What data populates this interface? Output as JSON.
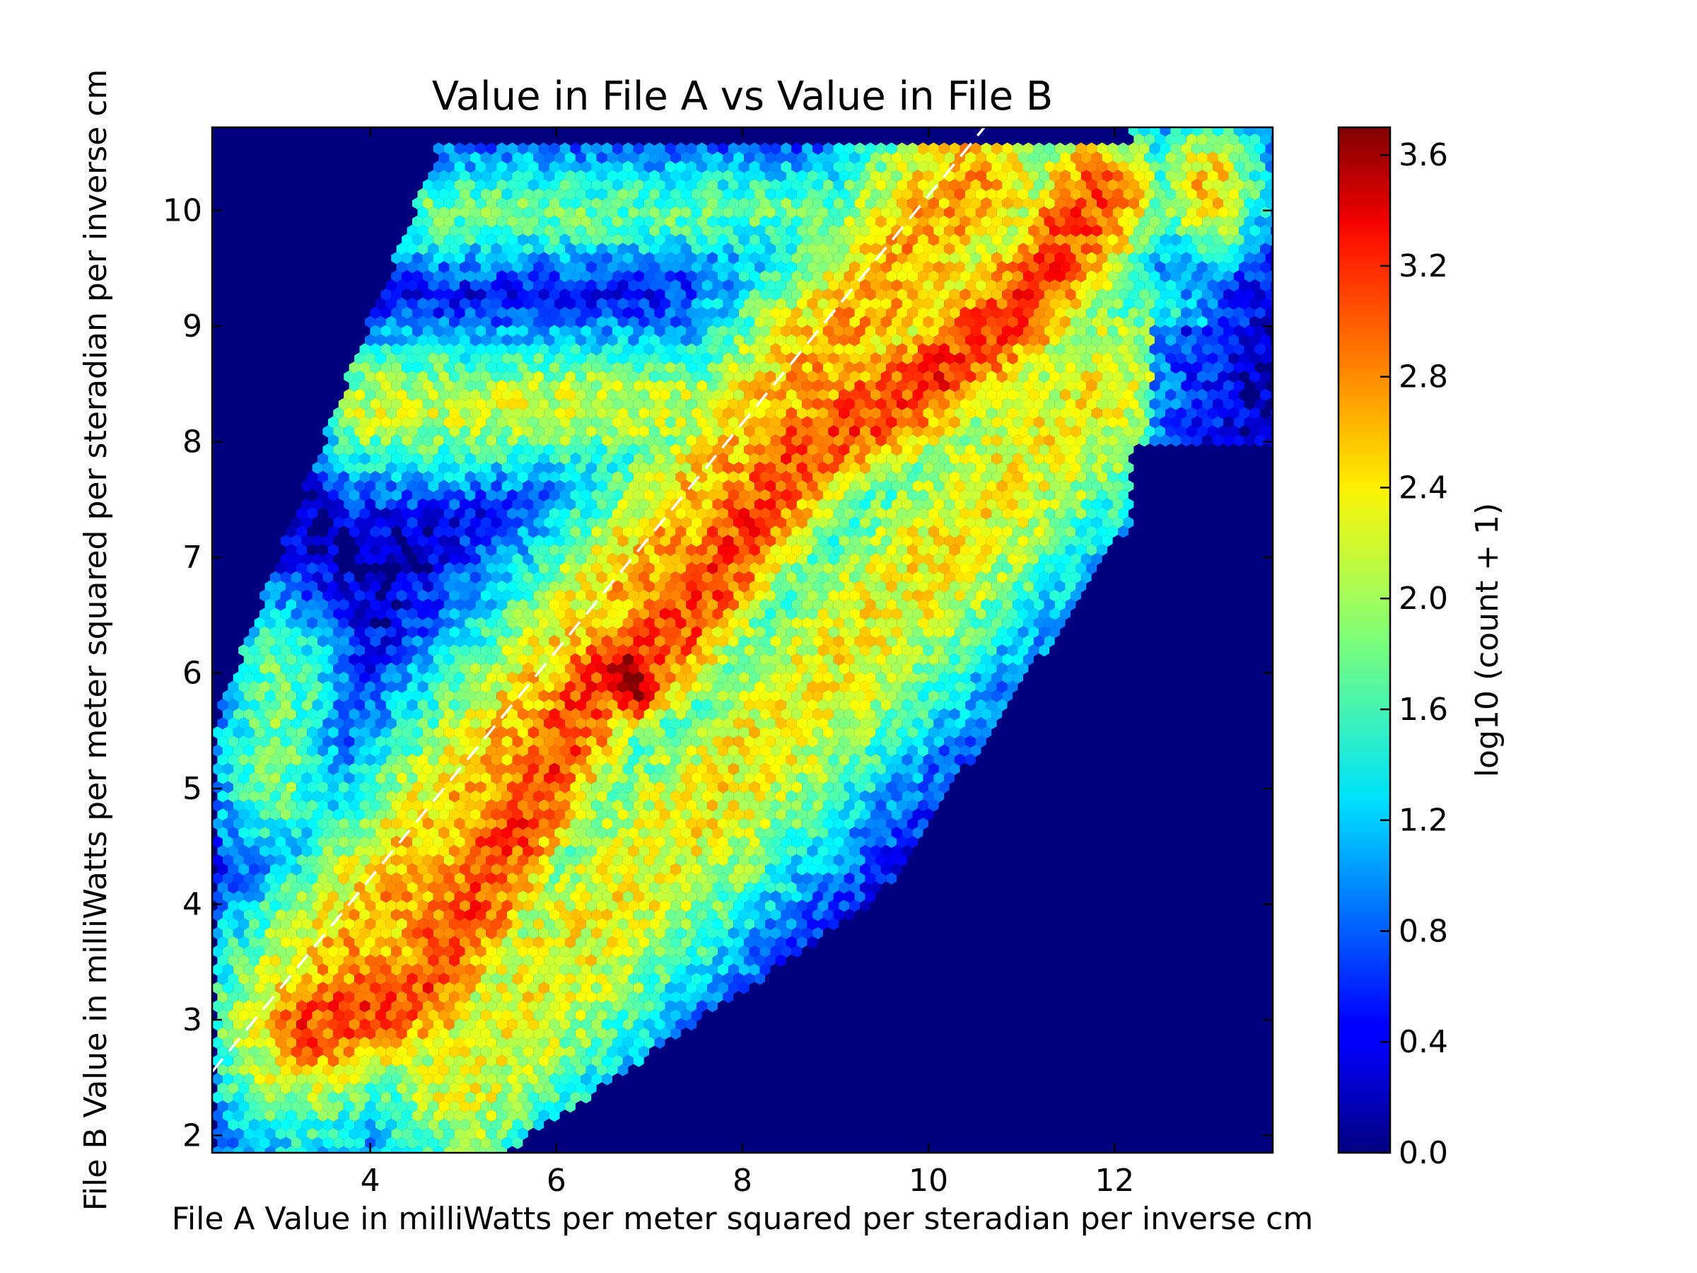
{
  "chart_data": {
    "type": "heatmap",
    "title": "Value in File A vs Value in File B",
    "xlabel": "File A Value in milliWatts per meter squared per steradian per inverse cm",
    "ylabel": "File B Value in milliWatts per meter squared per steradian per inverse cm",
    "xlim": [
      2.3,
      13.7
    ],
    "ylim": [
      1.85,
      10.72
    ],
    "x_ticks": [
      4,
      6,
      8,
      10,
      12
    ],
    "x_tick_labels": [
      "4",
      "6",
      "8",
      "10",
      "12"
    ],
    "y_ticks": [
      2,
      3,
      4,
      5,
      6,
      7,
      8,
      9,
      10
    ],
    "y_tick_labels": [
      "2",
      "3",
      "4",
      "5",
      "6",
      "7",
      "8",
      "9",
      "10"
    ],
    "grid": false,
    "colormap": "jet",
    "colorbar": {
      "label": "log10 (count + 1)",
      "range": [
        0.0,
        3.7
      ],
      "ticks": [
        0.0,
        0.4,
        0.8,
        1.2,
        1.6,
        2.0,
        2.4,
        2.8,
        3.2,
        3.6
      ],
      "tick_labels": [
        "0.0",
        "0.4",
        "0.8",
        "1.2",
        "1.6",
        "2.0",
        "2.4",
        "2.8",
        "3.2",
        "3.6"
      ]
    },
    "background_color": "#00007f",
    "reference_line": {
      "style": "dashed",
      "color": "#ffffff",
      "x": [
        2.3,
        10.6
      ],
      "y": [
        2.55,
        10.72
      ]
    },
    "density_peaks": [
      {
        "x": 6.8,
        "y": 5.95,
        "log_count": 3.7
      },
      {
        "x": 8.6,
        "y": 7.9,
        "log_count": 3.1
      },
      {
        "x": 10.1,
        "y": 8.6,
        "log_count": 3.2
      },
      {
        "x": 11.0,
        "y": 9.2,
        "log_count": 3.2
      },
      {
        "x": 11.8,
        "y": 10.1,
        "log_count": 3.0
      },
      {
        "x": 4.4,
        "y": 3.2,
        "log_count": 3.0
      },
      {
        "x": 4.6,
        "y": 3.6,
        "log_count": 2.9
      }
    ]
  }
}
